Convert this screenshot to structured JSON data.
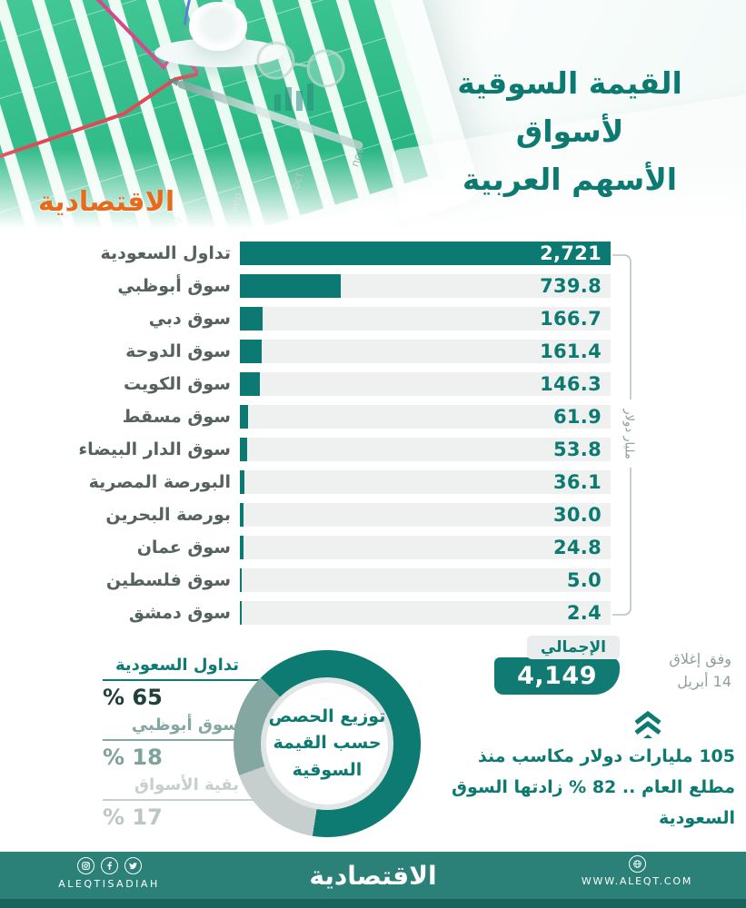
{
  "header": {
    "title_line1": "القيمة السوقية لأسواق",
    "title_line2": "الأسهم العربية",
    "logo_text": "الاقتصادية"
  },
  "chart_data": {
    "type": "bar",
    "orientation": "horizontal",
    "title": "القيمة السوقية لأسواق الأسهم العربية",
    "unit_label": "مليار دولار",
    "categories": [
      "تداول السعودية",
      "سوق أبوظبي",
      "سوق دبي",
      "سوق الدوحة",
      "سوق الكويت",
      "سوق مسقط",
      "سوق الدار البيضاء",
      "البورصة المصرية",
      "بورصة البحرين",
      "سوق عمان",
      "سوق فلسطين",
      "سوق دمشق"
    ],
    "values": [
      2721,
      739.8,
      166.7,
      161.4,
      146.3,
      61.9,
      53.8,
      36.1,
      30.0,
      24.8,
      5.0,
      2.4
    ],
    "value_labels": [
      "2,721",
      "739.8",
      "166.7",
      "161.4",
      "146.3",
      "61.9",
      "53.8",
      "36.1",
      "30.0",
      "24.8",
      "5.0",
      "2.4"
    ],
    "xlim": [
      0,
      2721
    ]
  },
  "total": {
    "label": "الإجمالي",
    "value": "4,149"
  },
  "as_of": {
    "line1": "وفق إغلاق",
    "line2": "14 أبريل"
  },
  "note": "105 مليارات دولار مكاسب منذ مطلع العام .. 82 % زادتها السوق السعودية",
  "donut": {
    "title_lines": [
      "توزيع الحصص",
      "حسب القيمة",
      "السوقية"
    ],
    "segments": [
      {
        "label": "تداول السعودية",
        "percent": 65,
        "percent_label": "% 65",
        "color": "#0e7b72",
        "percent_color": "#21403c"
      },
      {
        "label": "سوق أبوظبي",
        "percent": 18,
        "percent_label": "% 18",
        "color": "#85a7a1",
        "percent_color": "#7ea29c"
      },
      {
        "label": "بقية الأسواق",
        "percent": 17,
        "percent_label": "% 17",
        "color": "#c6cfce",
        "percent_color": "#bcc7c5"
      }
    ]
  },
  "footer": {
    "logo_text": "الاقتصادية",
    "social_handle": "ALEQTISADIAH",
    "website": "WWW.ALEQT.COM",
    "icons": [
      "instagram-icon",
      "facebook-icon",
      "twitter-icon",
      "globe-icon"
    ]
  },
  "colors": {
    "accent_teal": "#0d7a72",
    "brand_orange": "#e96a1c",
    "footer_teal": "#2b8077",
    "footer_strip": "#1a635c",
    "bar_track": "#eff1f0"
  }
}
